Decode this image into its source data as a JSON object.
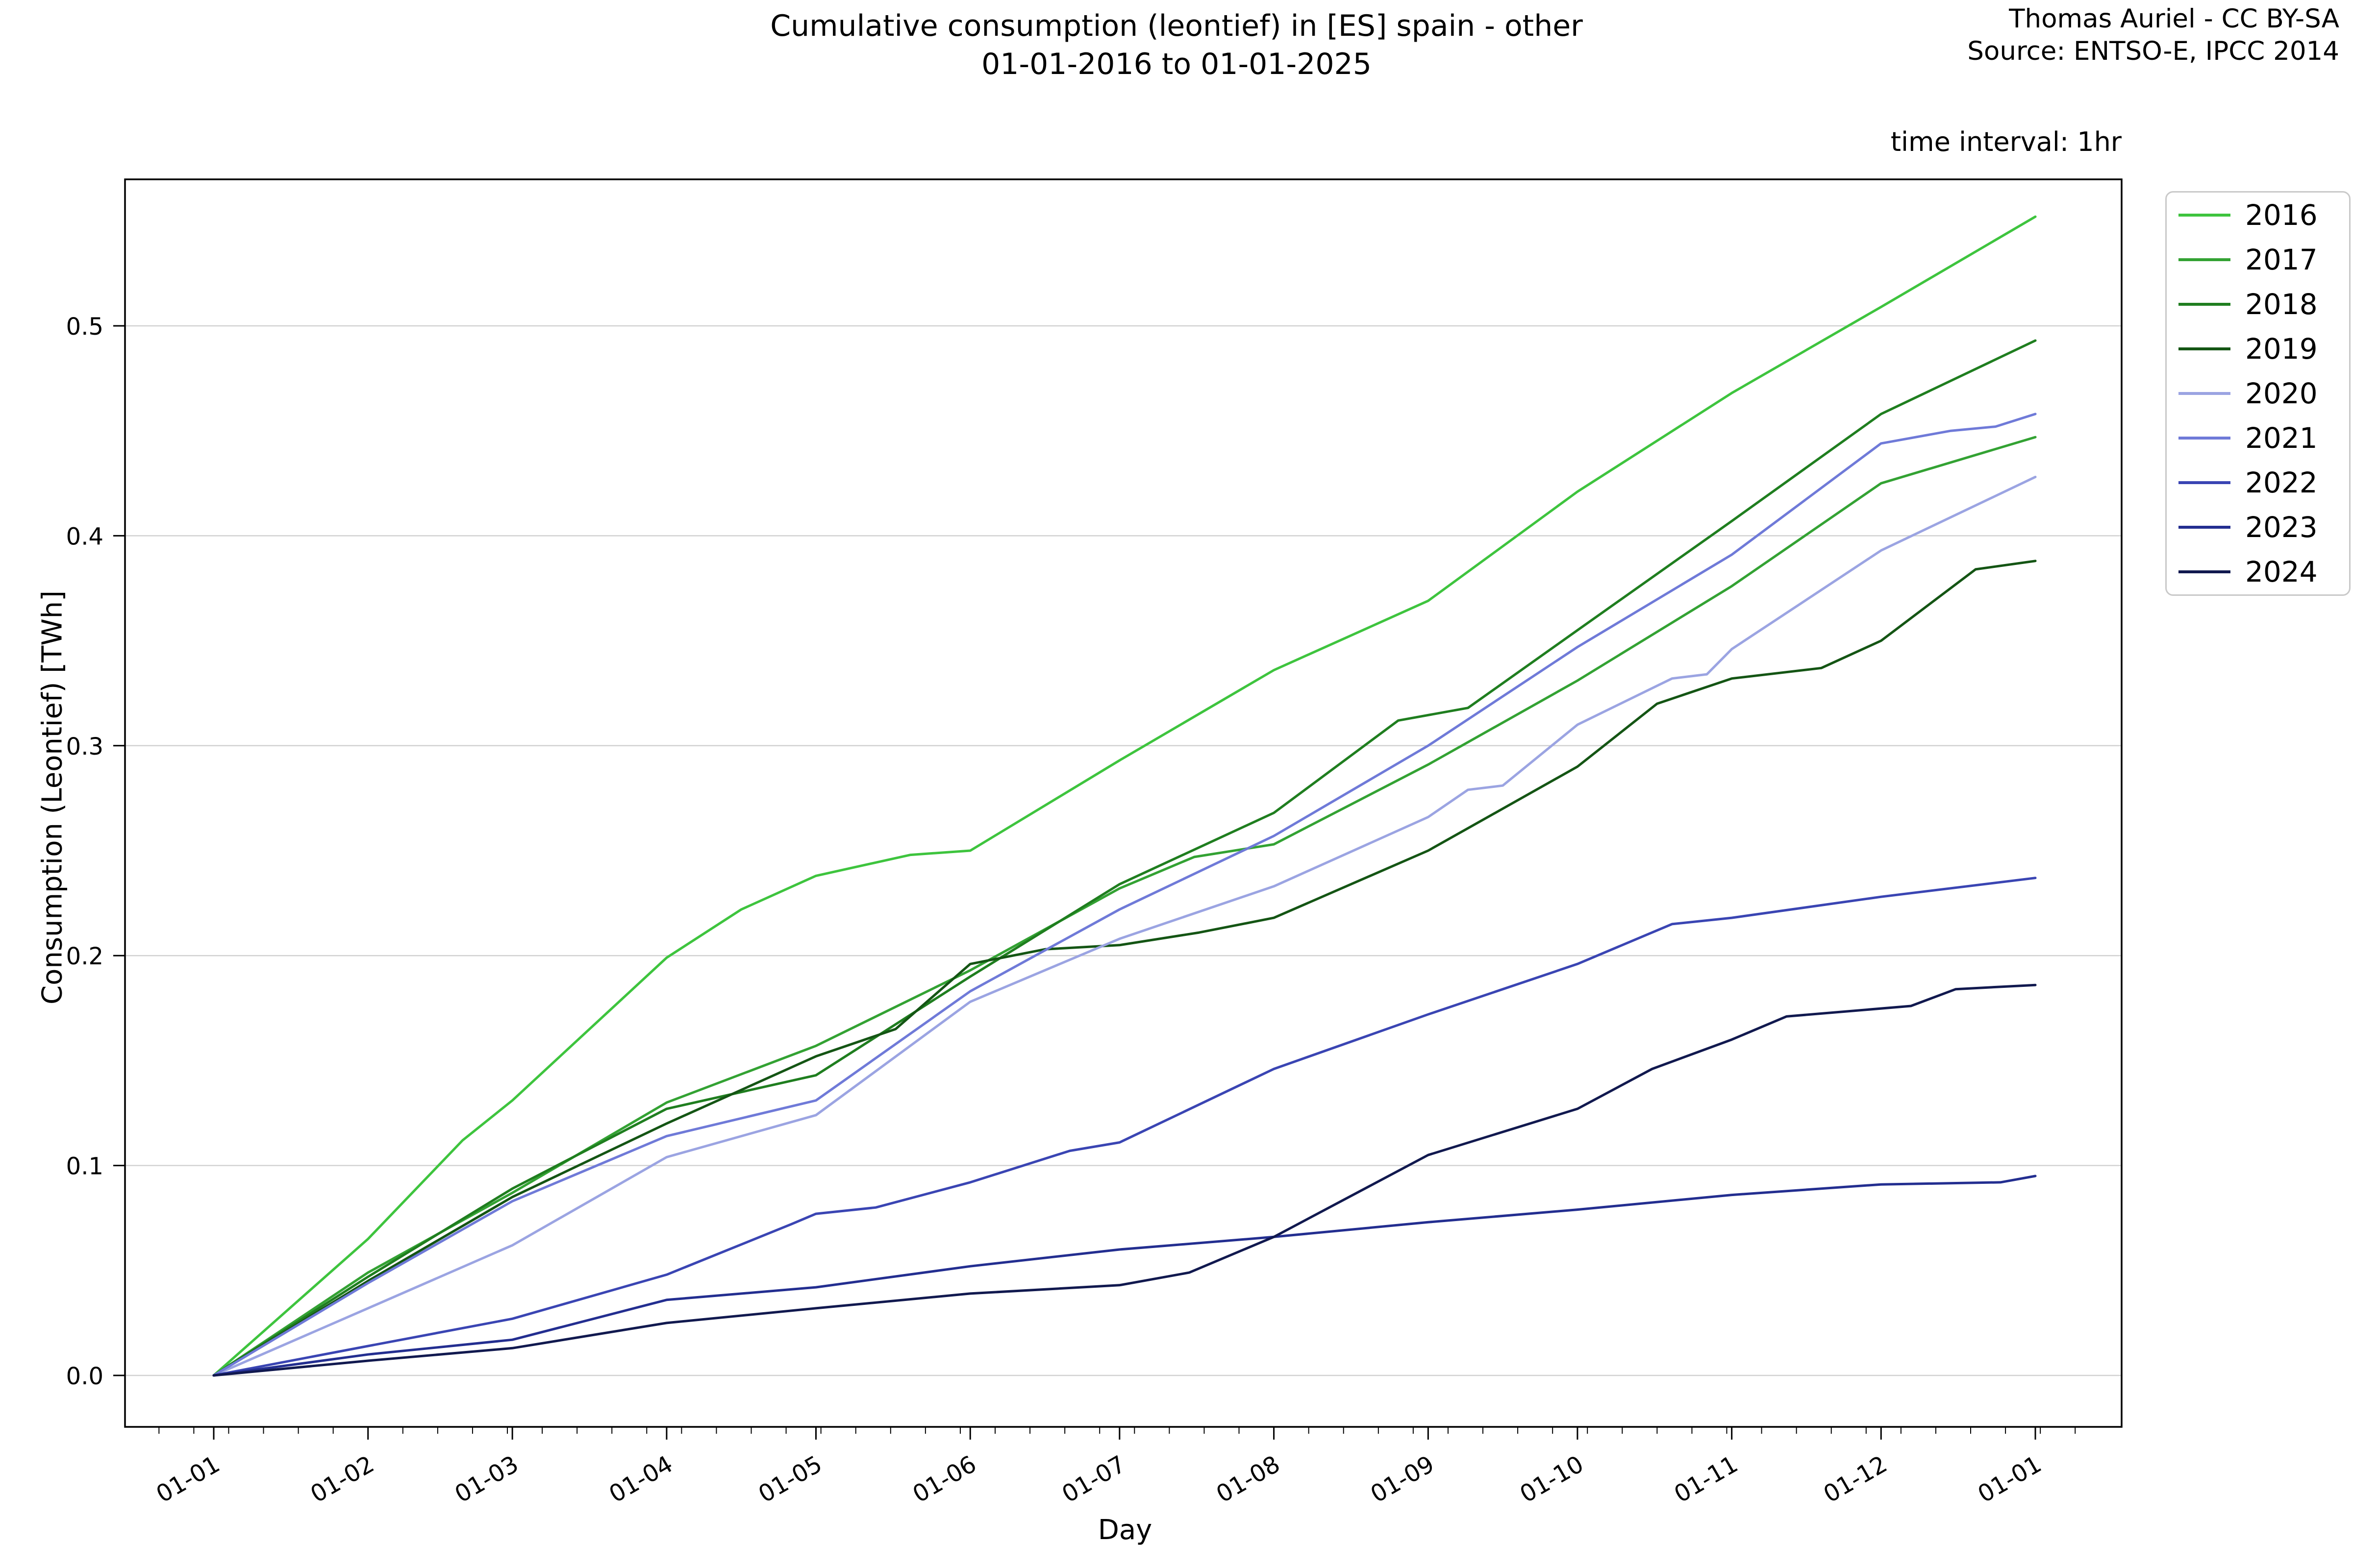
{
  "title": {
    "line1": "Cumulative consumption (leontief) in [ES] spain - other",
    "line2": "01-01-2016 to 01-01-2025"
  },
  "attribution": {
    "line1": "Thomas Auriel - CC BY-SA",
    "line2": "Source: ENTSO-E, IPCC 2014"
  },
  "note": "time interval: 1hr",
  "axes": {
    "xlabel": "Day",
    "ylabel": "Consumption (Leontief) [TWh]"
  },
  "chart_data": {
    "type": "line",
    "title": "Cumulative consumption (leontief) in [ES] spain - other 01-01-2016 to 01-01-2025",
    "xlabel": "Day",
    "ylabel": "Consumption (Leontief) [TWh]",
    "x_unit": "day-of-year, first of each month",
    "x_tick_labels": [
      "01-01",
      "01-02",
      "01-03",
      "01-04",
      "01-05",
      "01-06",
      "01-07",
      "01-08",
      "01-09",
      "01-10",
      "01-11",
      "01-12",
      "01-01"
    ],
    "x_tick_days": [
      0,
      31,
      60,
      91,
      121,
      152,
      182,
      213,
      244,
      274,
      305,
      335,
      366
    ],
    "y_tick_labels": [
      "0.0",
      "0.1",
      "0.2",
      "0.3",
      "0.4",
      "0.5"
    ],
    "y_ticks": [
      0.0,
      0.1,
      0.2,
      0.3,
      0.4,
      0.5
    ],
    "xlim_days": [
      -18,
      383
    ],
    "ylim": [
      -0.0245,
      0.57
    ],
    "grid": "horizontal major y gridlines only",
    "legend_position": "outside upper right",
    "grid_color": "#d2d2d2",
    "series": [
      {
        "name": "2016",
        "color": "#3ec43e",
        "points": [
          [
            0,
            0
          ],
          [
            31,
            0.065
          ],
          [
            50,
            0.112
          ],
          [
            60,
            0.131
          ],
          [
            91,
            0.199
          ],
          [
            106,
            0.222
          ],
          [
            121,
            0.238
          ],
          [
            140,
            0.248
          ],
          [
            152,
            0.25
          ],
          [
            182,
            0.293
          ],
          [
            213,
            0.336
          ],
          [
            244,
            0.369
          ],
          [
            274,
            0.421
          ],
          [
            305,
            0.468
          ],
          [
            335,
            0.509
          ],
          [
            366,
            0.552
          ]
        ]
      },
      {
        "name": "2017",
        "color": "#33a233",
        "points": [
          [
            0,
            0
          ],
          [
            31,
            0.049
          ],
          [
            60,
            0.087
          ],
          [
            91,
            0.13
          ],
          [
            121,
            0.157
          ],
          [
            152,
            0.193
          ],
          [
            182,
            0.232
          ],
          [
            197,
            0.247
          ],
          [
            213,
            0.253
          ],
          [
            244,
            0.291
          ],
          [
            274,
            0.331
          ],
          [
            305,
            0.376
          ],
          [
            335,
            0.425
          ],
          [
            366,
            0.447
          ]
        ]
      },
      {
        "name": "2018",
        "color": "#1f7e1f",
        "points": [
          [
            0,
            0
          ],
          [
            31,
            0.047
          ],
          [
            60,
            0.089
          ],
          [
            91,
            0.127
          ],
          [
            121,
            0.143
          ],
          [
            152,
            0.19
          ],
          [
            182,
            0.234
          ],
          [
            213,
            0.268
          ],
          [
            238,
            0.312
          ],
          [
            252,
            0.318
          ],
          [
            274,
            0.355
          ],
          [
            305,
            0.407
          ],
          [
            335,
            0.458
          ],
          [
            366,
            0.493
          ]
        ]
      },
      {
        "name": "2019",
        "color": "#145514",
        "points": [
          [
            0,
            0
          ],
          [
            31,
            0.045
          ],
          [
            60,
            0.085
          ],
          [
            91,
            0.12
          ],
          [
            121,
            0.152
          ],
          [
            137,
            0.165
          ],
          [
            152,
            0.196
          ],
          [
            167,
            0.203
          ],
          [
            182,
            0.205
          ],
          [
            198,
            0.211
          ],
          [
            213,
            0.218
          ],
          [
            244,
            0.25
          ],
          [
            274,
            0.29
          ],
          [
            290,
            0.32
          ],
          [
            305,
            0.332
          ],
          [
            323,
            0.337
          ],
          [
            335,
            0.35
          ],
          [
            354,
            0.384
          ],
          [
            366,
            0.388
          ]
        ]
      },
      {
        "name": "2020",
        "color": "#9ba4e2",
        "points": [
          [
            0,
            0
          ],
          [
            31,
            0.032
          ],
          [
            60,
            0.062
          ],
          [
            91,
            0.104
          ],
          [
            121,
            0.124
          ],
          [
            152,
            0.178
          ],
          [
            182,
            0.208
          ],
          [
            213,
            0.233
          ],
          [
            244,
            0.266
          ],
          [
            252,
            0.279
          ],
          [
            259,
            0.281
          ],
          [
            274,
            0.31
          ],
          [
            293,
            0.332
          ],
          [
            300,
            0.334
          ],
          [
            305,
            0.346
          ],
          [
            335,
            0.393
          ],
          [
            366,
            0.428
          ]
        ]
      },
      {
        "name": "2021",
        "color": "#6f7ad8",
        "points": [
          [
            0,
            0
          ],
          [
            31,
            0.044
          ],
          [
            60,
            0.083
          ],
          [
            91,
            0.114
          ],
          [
            121,
            0.131
          ],
          [
            152,
            0.183
          ],
          [
            182,
            0.222
          ],
          [
            213,
            0.257
          ],
          [
            244,
            0.3
          ],
          [
            274,
            0.347
          ],
          [
            305,
            0.391
          ],
          [
            335,
            0.444
          ],
          [
            349,
            0.45
          ],
          [
            358,
            0.452
          ],
          [
            366,
            0.458
          ]
        ]
      },
      {
        "name": "2022",
        "color": "#3a45b3",
        "points": [
          [
            0,
            0
          ],
          [
            31,
            0.014
          ],
          [
            60,
            0.027
          ],
          [
            91,
            0.048
          ],
          [
            116,
            0.072
          ],
          [
            121,
            0.077
          ],
          [
            133,
            0.08
          ],
          [
            152,
            0.092
          ],
          [
            172,
            0.107
          ],
          [
            182,
            0.111
          ],
          [
            213,
            0.146
          ],
          [
            244,
            0.172
          ],
          [
            274,
            0.196
          ],
          [
            293,
            0.215
          ],
          [
            305,
            0.218
          ],
          [
            335,
            0.228
          ],
          [
            366,
            0.237
          ]
        ]
      },
      {
        "name": "2023",
        "color": "#232e90",
        "points": [
          [
            0,
            0
          ],
          [
            31,
            0.01
          ],
          [
            60,
            0.017
          ],
          [
            91,
            0.036
          ],
          [
            121,
            0.042
          ],
          [
            152,
            0.052
          ],
          [
            182,
            0.06
          ],
          [
            213,
            0.066
          ],
          [
            244,
            0.073
          ],
          [
            274,
            0.079
          ],
          [
            305,
            0.086
          ],
          [
            335,
            0.091
          ],
          [
            359,
            0.092
          ],
          [
            366,
            0.095
          ]
        ]
      },
      {
        "name": "2024",
        "color": "#11194f",
        "points": [
          [
            0,
            0
          ],
          [
            31,
            0.007
          ],
          [
            60,
            0.013
          ],
          [
            91,
            0.025
          ],
          [
            121,
            0.032
          ],
          [
            152,
            0.039
          ],
          [
            182,
            0.043
          ],
          [
            196,
            0.049
          ],
          [
            213,
            0.066
          ],
          [
            244,
            0.105
          ],
          [
            274,
            0.127
          ],
          [
            289,
            0.146
          ],
          [
            305,
            0.16
          ],
          [
            316,
            0.171
          ],
          [
            341,
            0.176
          ],
          [
            350,
            0.184
          ],
          [
            366,
            0.186
          ]
        ]
      }
    ]
  }
}
